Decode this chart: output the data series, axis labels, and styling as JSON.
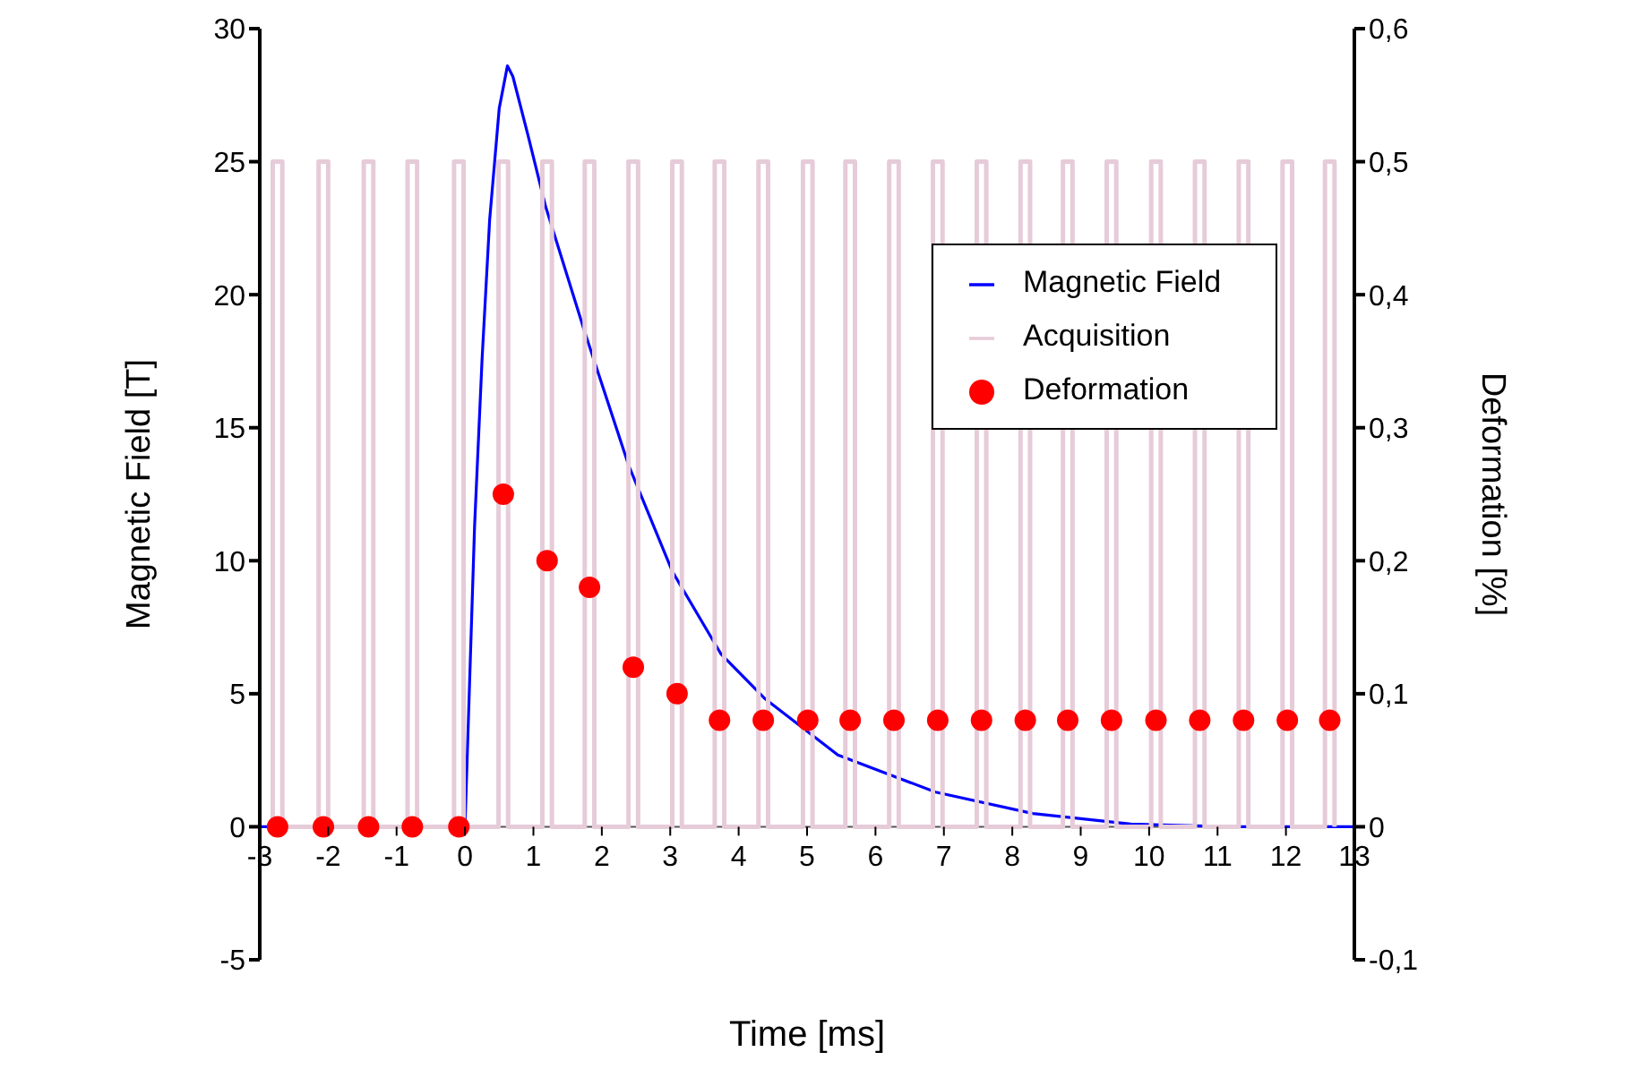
{
  "chart_data": {
    "type": "line",
    "xlabel": "Time [ms]",
    "ylabel": "Magnetic Field [T]",
    "y2label": "Deformation [%]",
    "xlim": [
      -3,
      13
    ],
    "xticks": [
      -3,
      -2,
      -1,
      0,
      1,
      2,
      3,
      4,
      5,
      6,
      7,
      8,
      9,
      10,
      11,
      12,
      13
    ],
    "ylim": [
      -5,
      30
    ],
    "yticks": [
      -5,
      0,
      5,
      10,
      15,
      20,
      25,
      30
    ],
    "y2lim": [
      -0.1,
      0.6
    ],
    "y2ticks": [
      {
        "value": -0.1,
        "label": "-0,1"
      },
      0,
      {
        "value": 0.1,
        "label": "0,1"
      },
      {
        "value": 0.2,
        "label": "0,2"
      },
      {
        "value": 0.3,
        "label": "0,3"
      },
      {
        "value": 0.4,
        "label": "0,4"
      },
      {
        "value": 0.5,
        "label": "0,5"
      },
      {
        "value": 0.6,
        "label": "0,6"
      }
    ],
    "legend": "top right",
    "grid": false,
    "series": [
      {
        "name": "Magnetic Field",
        "color": "#0000ff",
        "marker": "none",
        "x": [
          -3,
          0,
          0.14,
          0.25,
          0.36,
          0.5,
          0.62,
          0.7,
          0.92,
          1.18,
          1.75,
          2.39,
          3.03,
          3.74,
          4.39,
          5.45,
          6.88,
          8.3,
          9.73,
          11.16,
          13
        ],
        "values": [
          0,
          0,
          11.3,
          17.6,
          22.8,
          27,
          28.6,
          28.2,
          26,
          23.3,
          18.6,
          13.6,
          9.6,
          6.5,
          4.8,
          2.7,
          1.3,
          0.5,
          0.1,
          0,
          0
        ]
      },
      {
        "name": "Acquisition",
        "color": "#e6cbd8",
        "marker": "none",
        "x": [
          -2.81,
          -2.81,
          -2.67,
          -2.67,
          -2.14,
          -2.14,
          -2.0,
          -2.0,
          -1.48,
          -1.48,
          -1.34,
          -1.34,
          -0.84,
          -0.84,
          -0.7,
          -0.7,
          -0.16,
          -0.16,
          -0.02,
          -0.02,
          0.49,
          0.49,
          0.63,
          0.63,
          1.13,
          1.13,
          1.27,
          1.27,
          1.75,
          1.75,
          1.89,
          1.89,
          2.39,
          2.39,
          2.53,
          2.53,
          3.03,
          3.03,
          3.17,
          3.17,
          3.65,
          3.65,
          3.79,
          3.79,
          4.29,
          4.29,
          4.43,
          4.43,
          4.94,
          4.94,
          5.08,
          5.08,
          5.56,
          5.56,
          5.7,
          5.7,
          6.2,
          6.2,
          6.34,
          6.34,
          6.84,
          6.84,
          6.98,
          6.98,
          7.48,
          7.48,
          7.62,
          7.62,
          8.12,
          8.12,
          8.26,
          8.26,
          8.74,
          8.74,
          8.88,
          8.88,
          9.38,
          9.38,
          9.52,
          9.52,
          10.03,
          10.03,
          10.17,
          10.17,
          10.67,
          10.67,
          10.81,
          10.81,
          11.31,
          11.31,
          11.45,
          11.45,
          11.95,
          11.95,
          12.09,
          12.09,
          12.57,
          12.57,
          12.71,
          12.71
        ],
        "values": [
          0,
          25,
          25,
          0,
          0,
          25,
          25,
          0,
          0,
          25,
          25,
          0,
          0,
          25,
          25,
          0,
          0,
          25,
          25,
          0,
          0,
          25,
          25,
          0,
          0,
          25,
          25,
          0,
          0,
          25,
          25,
          0,
          0,
          25,
          25,
          0,
          0,
          25,
          25,
          0,
          0,
          25,
          25,
          0,
          0,
          25,
          25,
          0,
          0,
          25,
          25,
          0,
          0,
          25,
          25,
          0,
          0,
          25,
          25,
          0,
          0,
          25,
          25,
          0,
          0,
          25,
          25,
          0,
          0,
          25,
          25,
          0,
          0,
          25,
          25,
          0,
          0,
          25,
          25,
          0,
          0,
          25,
          25,
          0,
          0,
          25,
          25,
          0,
          0,
          25,
          25,
          0,
          0,
          25,
          25,
          0,
          0,
          25,
          25,
          0
        ]
      },
      {
        "name": "Deformation",
        "type": "scatter",
        "axis": "y2",
        "color": "#ff0000",
        "marker": "circle",
        "x": [
          -2.74,
          -2.07,
          -1.41,
          -0.77,
          -0.09,
          0.56,
          1.2,
          1.82,
          2.46,
          3.1,
          3.72,
          4.36,
          5.01,
          5.63,
          6.27,
          6.91,
          7.55,
          8.19,
          8.81,
          9.45,
          10.1,
          10.74,
          11.38,
          12.02,
          12.64
        ],
        "values": [
          0,
          0,
          0,
          0,
          0,
          0.25,
          0.2,
          0.18,
          0.12,
          0.1,
          0.08,
          0.08,
          0.08,
          0.08,
          0.08,
          0.08,
          0.08,
          0.08,
          0.08,
          0.08,
          0.08,
          0.08,
          0.08,
          0.08,
          0.08
        ]
      }
    ]
  }
}
